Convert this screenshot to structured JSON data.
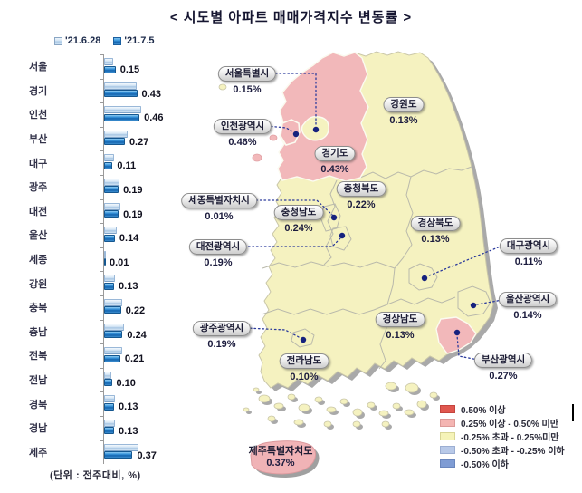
{
  "title": "< 시도별 아파트 매매가격지수 변동률 >",
  "unit_note": "(단위 : 전주대비, %)",
  "chart_legend": {
    "items": [
      {
        "label": "'21.6.28",
        "color": "#bdd7ee"
      },
      {
        "label": "'21.7.5",
        "color": "#2e75b6"
      }
    ]
  },
  "chart_data": {
    "type": "bar",
    "orientation": "horizontal",
    "title": "시도별 아파트 매매가격지수 변동률",
    "unit": "전주대비, %",
    "categories": [
      "서울",
      "경기",
      "인천",
      "부산",
      "대구",
      "광주",
      "대전",
      "울산",
      "세종",
      "강원",
      "충북",
      "충남",
      "전북",
      "전남",
      "경북",
      "경남",
      "제주"
    ],
    "series": [
      {
        "name": "'21.6.28",
        "estimated_from_bar_length": true,
        "values": [
          0.12,
          0.42,
          0.48,
          0.31,
          0.13,
          0.2,
          0.21,
          0.16,
          0.01,
          0.14,
          0.24,
          0.26,
          0.23,
          0.09,
          0.14,
          0.14,
          0.45
        ]
      },
      {
        "name": "'21.7.5",
        "values": [
          0.15,
          0.43,
          0.46,
          0.27,
          0.11,
          0.19,
          0.19,
          0.14,
          0.01,
          0.13,
          0.22,
          0.24,
          0.21,
          0.1,
          0.13,
          0.13,
          0.37
        ]
      }
    ],
    "value_labels": [
      "0.15",
      "0.43",
      "0.46",
      "0.27",
      "0.11",
      "0.19",
      "0.19",
      "0.14",
      "0.01",
      "0.13",
      "0.22",
      "0.24",
      "0.21",
      "0.10",
      "0.13",
      "0.13",
      "0.37"
    ],
    "value_labels_series": "'21.7.5",
    "xlim": [
      0,
      0.5
    ]
  },
  "map": {
    "regions": [
      {
        "name": "서울특별시",
        "value": "0.15%"
      },
      {
        "name": "인천광역시",
        "value": "0.46%"
      },
      {
        "name": "경기도",
        "value": "0.43%"
      },
      {
        "name": "강원도",
        "value": "0.13%"
      },
      {
        "name": "세종특별자치시",
        "value": "0.01%"
      },
      {
        "name": "충청북도",
        "value": "0.22%"
      },
      {
        "name": "충청남도",
        "value": "0.24%"
      },
      {
        "name": "대전광역시",
        "value": "0.19%"
      },
      {
        "name": "경상북도",
        "value": "0.13%"
      },
      {
        "name": "대구광역시",
        "value": "0.11%"
      },
      {
        "name": "울산광역시",
        "value": "0.14%"
      },
      {
        "name": "부산광역시",
        "value": "0.27%"
      },
      {
        "name": "광주광역시",
        "value": "0.19%"
      },
      {
        "name": "전라남도",
        "value": "0.10%"
      },
      {
        "name": "경상남도",
        "value": "0.13%"
      },
      {
        "name": "제주특별자치도",
        "value": "0.37%"
      }
    ],
    "legend": [
      {
        "label": "0.50% 이상",
        "color": "#e0574f"
      },
      {
        "label": "0.25% 이상 - 0.50% 미만",
        "color": "#f4b5b2"
      },
      {
        "label": "-0.25% 초과 - 0.25%미만",
        "color": "#f5f3b8"
      },
      {
        "label": "-0.50% 초과 - -0.25% 이하",
        "color": "#b8c9e8"
      },
      {
        "label": "-0.50% 이하",
        "color": "#7f9cd4"
      }
    ],
    "colors": {
      "region_yellow": "#f5f2c0",
      "region_pink": "#f2b8ba",
      "marker_dot": "#16227e",
      "shadow_gray": "#a9a9a9"
    }
  }
}
